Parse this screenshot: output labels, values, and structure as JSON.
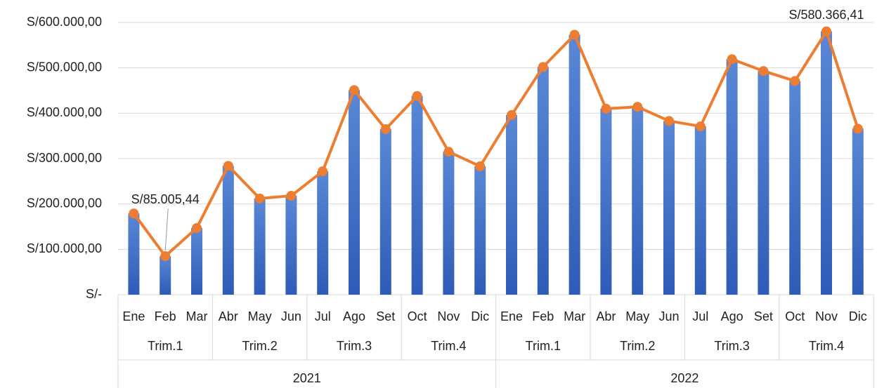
{
  "chart_data": {
    "type": "bar-line",
    "categories": [
      "Ene",
      "Feb",
      "Mar",
      "Abr",
      "May",
      "Jun",
      "Jul",
      "Ago",
      "Set",
      "Oct",
      "Nov",
      "Dic",
      "Ene",
      "Feb",
      "Mar",
      "Abr",
      "May",
      "Jun",
      "Jul",
      "Ago",
      "Set",
      "Oct",
      "Nov",
      "Dic"
    ],
    "quarters": [
      "Trim.1",
      "Trim.2",
      "Trim.3",
      "Trim.4",
      "Trim.1",
      "Trim.2",
      "Trim.3",
      "Trim.4"
    ],
    "years": [
      "2021",
      "2022"
    ],
    "series": [
      {
        "type": "bar",
        "color": "#4472c4",
        "values": [
          179000,
          85005.44,
          147000,
          284000,
          212000,
          218000,
          272000,
          451000,
          365000,
          438000,
          315000,
          283000,
          396000,
          502000,
          573000,
          410000,
          414000,
          383000,
          371000,
          519000,
          493000,
          471000,
          580366.41,
          366000
        ]
      },
      {
        "type": "line",
        "color": "#ed7d31",
        "values": [
          179000,
          85005.44,
          147000,
          284000,
          212000,
          218000,
          272000,
          451000,
          365000,
          438000,
          315000,
          283000,
          396000,
          502000,
          573000,
          410000,
          414000,
          383000,
          371000,
          519000,
          493000,
          471000,
          580366.41,
          366000
        ],
        "value_labels": [
          null,
          "S/85.005,44",
          null,
          null,
          null,
          null,
          null,
          null,
          null,
          null,
          null,
          null,
          null,
          null,
          null,
          null,
          null,
          null,
          null,
          null,
          null,
          null,
          "S/580.366,41",
          null
        ]
      }
    ],
    "ylim": [
      0,
      600000
    ],
    "yticks": [
      {
        "value": 0,
        "label": "S/-"
      },
      {
        "value": 100000,
        "label": "S/100.000,00"
      },
      {
        "value": 200000,
        "label": "S/200.000,00"
      },
      {
        "value": 300000,
        "label": "S/300.000,00"
      },
      {
        "value": 400000,
        "label": "S/400.000,00"
      },
      {
        "value": 500000,
        "label": "S/500.000,00"
      },
      {
        "value": 600000,
        "label": "S/600.000,00"
      }
    ],
    "grid": true
  }
}
